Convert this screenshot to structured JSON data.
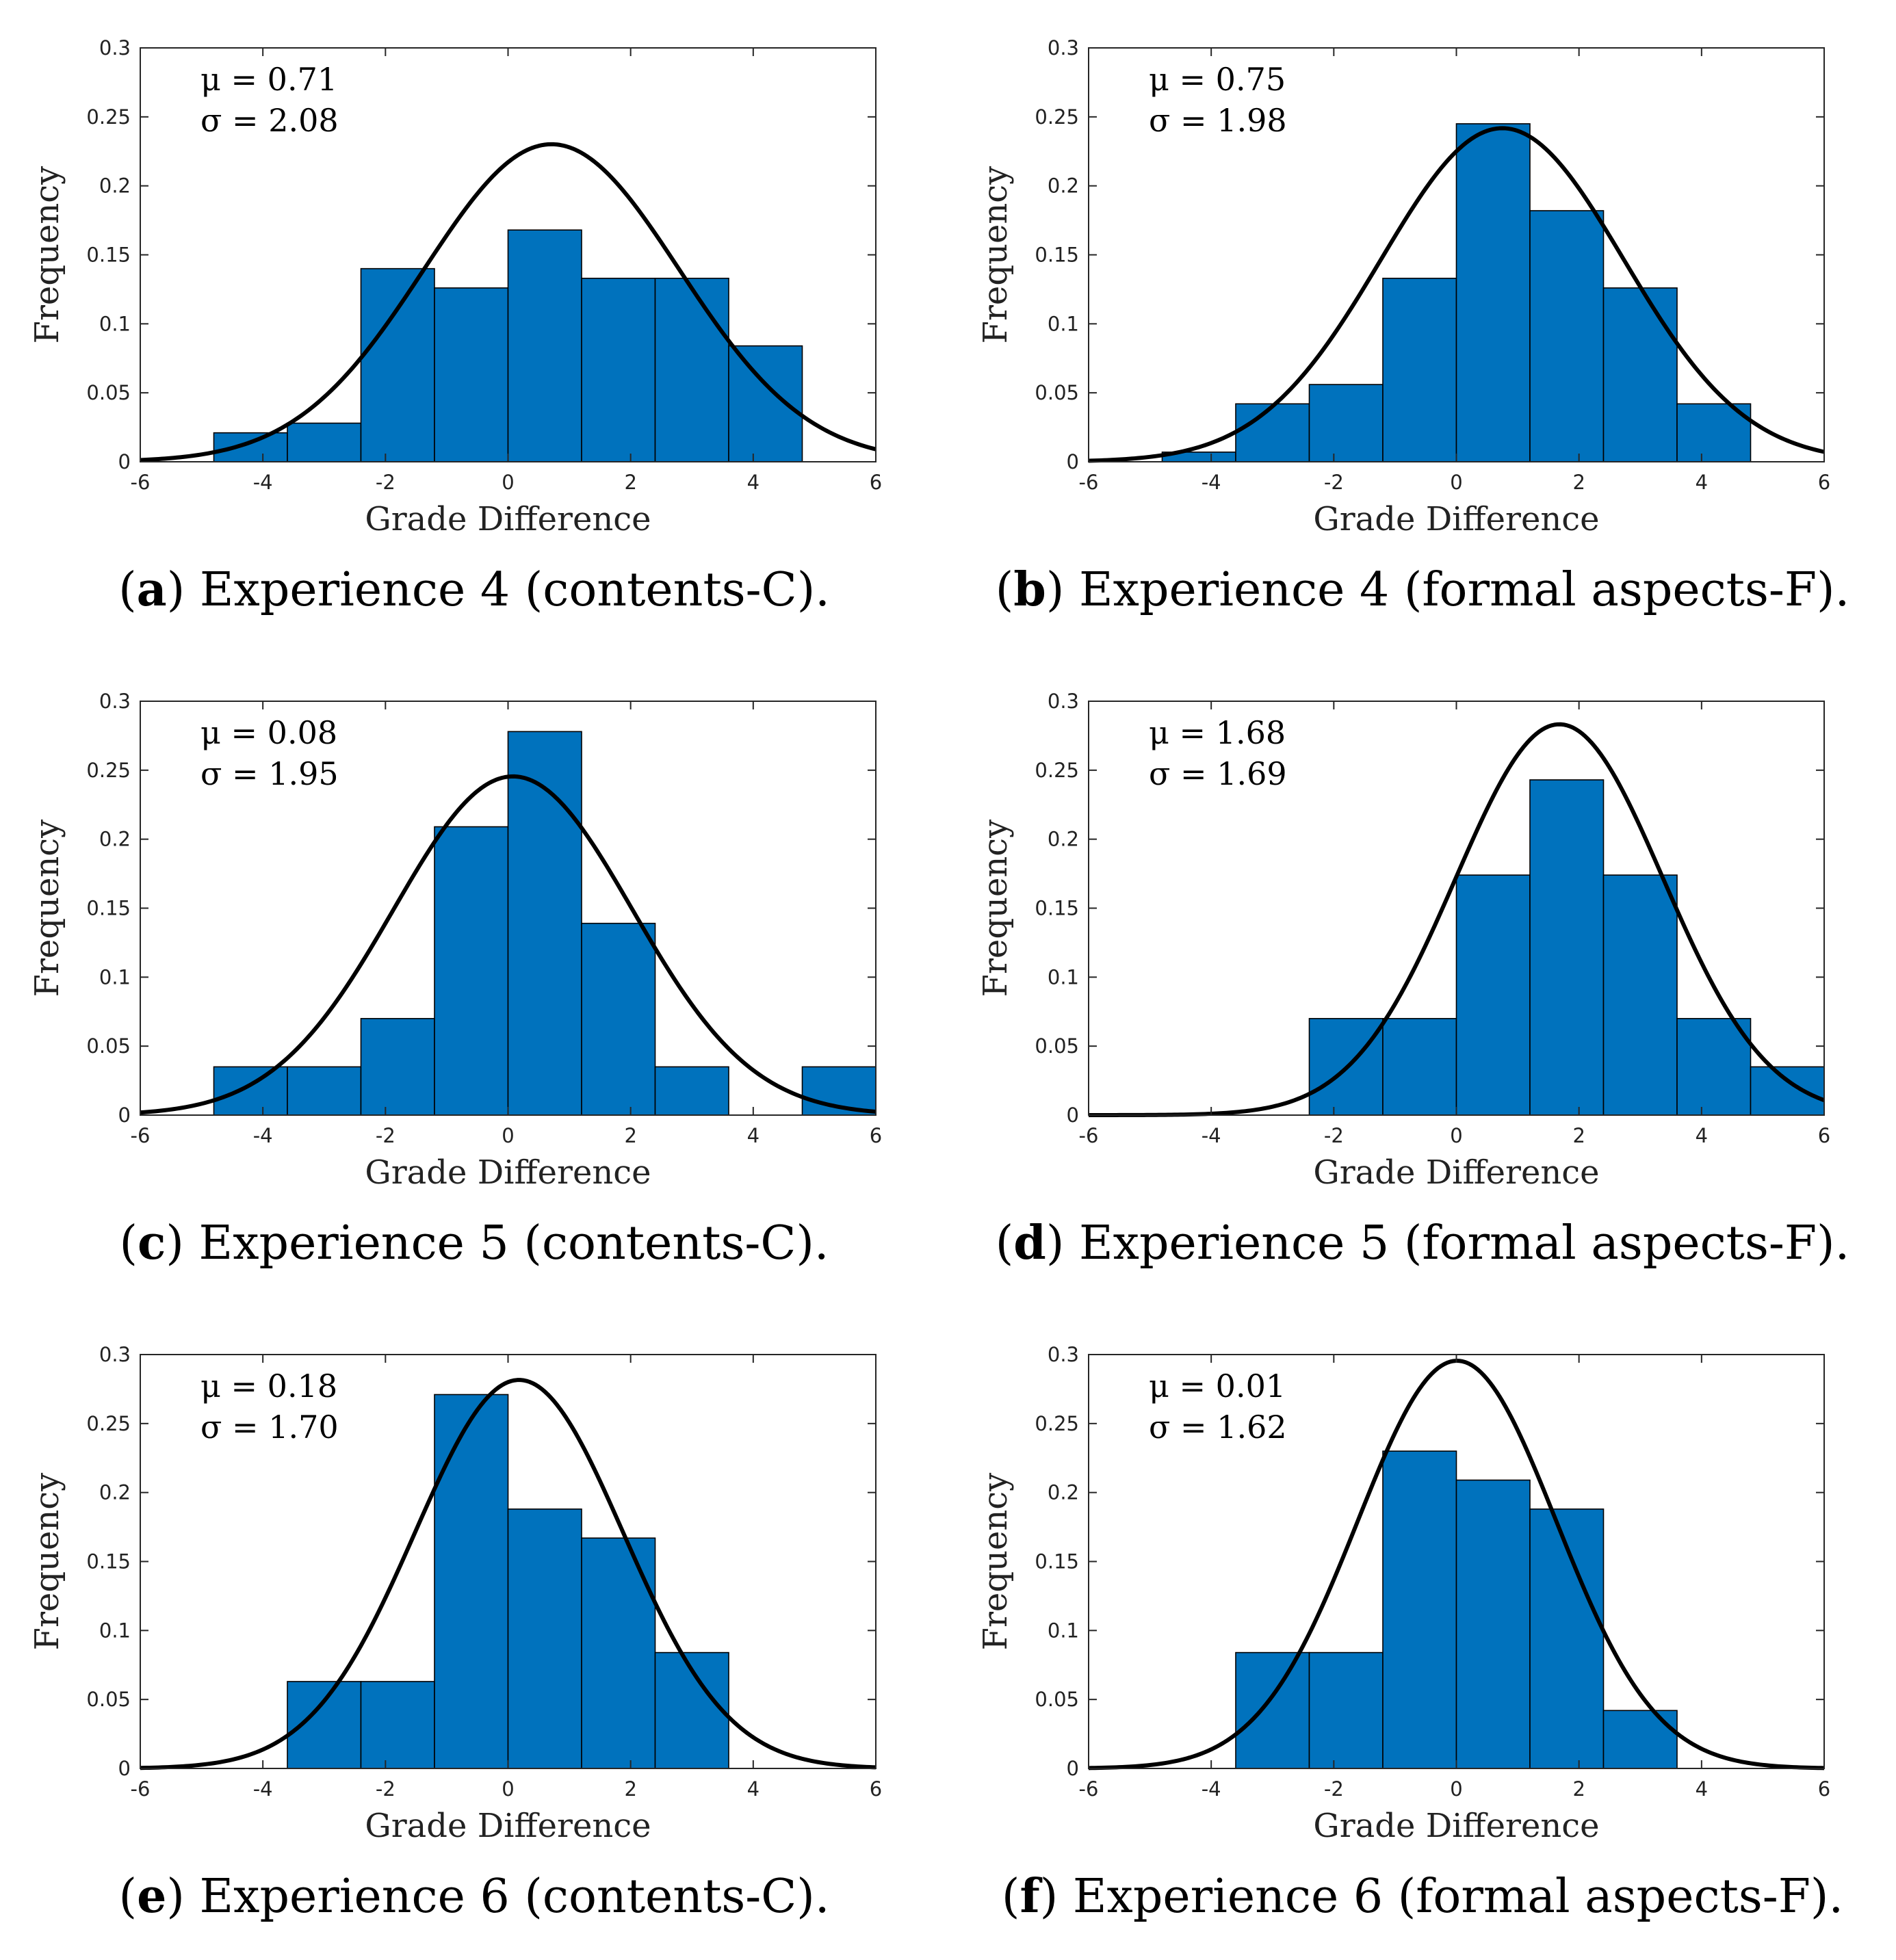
{
  "chart_data": [
    {
      "type": "bar",
      "panel_letter": "a",
      "caption": "Experience 4 (contents-C).",
      "xlabel": "Grade Difference",
      "ylabel": "Frequency",
      "xlim": [
        -6,
        6
      ],
      "ylim": [
        0,
        0.3
      ],
      "xticks": [
        "-6",
        "-4",
        "-2",
        "0",
        "2",
        "4",
        "6"
      ],
      "yticks": [
        "0",
        "0.05",
        "0.1",
        "0.15",
        "0.2",
        "0.25",
        "0.3"
      ],
      "bin_edges": [
        -4.8,
        -3.6,
        -2.4,
        -1.2,
        0,
        1.2,
        2.4,
        3.6,
        4.8
      ],
      "values": [
        0.021,
        0.028,
        0.14,
        0.126,
        0.168,
        0.133,
        0.133,
        0.084
      ],
      "fit": {
        "type": "normal",
        "mu": 0.71,
        "sigma": 2.08
      },
      "annotation": [
        "μ = 0.71",
        "σ = 2.08"
      ],
      "bar_color": "#0072bd",
      "curve_color": "#000000"
    },
    {
      "type": "bar",
      "panel_letter": "b",
      "caption": "Experience 4 (formal aspects-F).",
      "xlabel": "Grade Difference",
      "ylabel": "Frequency",
      "xlim": [
        -6,
        6
      ],
      "ylim": [
        0,
        0.3
      ],
      "xticks": [
        "-6",
        "-4",
        "-2",
        "0",
        "2",
        "4",
        "6"
      ],
      "yticks": [
        "0",
        "0.05",
        "0.1",
        "0.15",
        "0.2",
        "0.25",
        "0.3"
      ],
      "bin_edges": [
        -4.8,
        -3.6,
        -2.4,
        -1.2,
        0,
        1.2,
        2.4,
        3.6,
        4.8
      ],
      "values": [
        0.007,
        0.042,
        0.056,
        0.133,
        0.245,
        0.182,
        0.126,
        0.042
      ],
      "fit": {
        "type": "normal",
        "mu": 0.75,
        "sigma": 1.98
      },
      "annotation": [
        "μ = 0.75",
        "σ = 1.98"
      ],
      "bar_color": "#0072bd",
      "curve_color": "#000000"
    },
    {
      "type": "bar",
      "panel_letter": "c",
      "caption": "Experience 5 (contents-C).",
      "xlabel": "Grade Difference",
      "ylabel": "Frequency",
      "xlim": [
        -6,
        6
      ],
      "ylim": [
        0,
        0.3
      ],
      "xticks": [
        "-6",
        "-4",
        "-2",
        "0",
        "2",
        "4",
        "6"
      ],
      "yticks": [
        "0",
        "0.05",
        "0.1",
        "0.15",
        "0.2",
        "0.25",
        "0.3"
      ],
      "bin_edges": [
        -4.8,
        -3.6,
        -2.4,
        -1.2,
        0,
        1.2,
        2.4,
        3.6,
        4.8,
        6
      ],
      "values": [
        0.035,
        0.035,
        0.07,
        0.209,
        0.278,
        0.139,
        0.035,
        0,
        0.035
      ],
      "fit": {
        "type": "normal",
        "mu": 0.08,
        "sigma": 1.95
      },
      "annotation": [
        "μ = 0.08",
        "σ = 1.95"
      ],
      "bar_color": "#0072bd",
      "curve_color": "#000000"
    },
    {
      "type": "bar",
      "panel_letter": "d",
      "caption": "Experience 5 (formal aspects-F).",
      "xlabel": "Grade Difference",
      "ylabel": "Frequency",
      "xlim": [
        -6,
        6
      ],
      "ylim": [
        0,
        0.3
      ],
      "xticks": [
        "-6",
        "-4",
        "-2",
        "0",
        "2",
        "4",
        "6"
      ],
      "yticks": [
        "0",
        "0.05",
        "0.1",
        "0.15",
        "0.2",
        "0.25",
        "0.3"
      ],
      "bin_edges": [
        -2.4,
        -1.2,
        0,
        1.2,
        2.4,
        3.6,
        4.8,
        6
      ],
      "values": [
        0.07,
        0.07,
        0.174,
        0.243,
        0.174,
        0.07,
        0.035
      ],
      "fit": {
        "type": "normal",
        "mu": 1.68,
        "sigma": 1.69
      },
      "annotation": [
        "μ = 1.68",
        "σ = 1.69"
      ],
      "bar_color": "#0072bd",
      "curve_color": "#000000"
    },
    {
      "type": "bar",
      "panel_letter": "e",
      "caption": "Experience 6 (contents-C).",
      "xlabel": "Grade Difference",
      "ylabel": "Frequency",
      "xlim": [
        -6,
        6
      ],
      "ylim": [
        0,
        0.3
      ],
      "xticks": [
        "-6",
        "-4",
        "-2",
        "0",
        "2",
        "4",
        "6"
      ],
      "yticks": [
        "0",
        "0.05",
        "0.1",
        "0.15",
        "0.2",
        "0.25",
        "0.3"
      ],
      "bin_edges": [
        -3.6,
        -2.4,
        -1.2,
        0,
        1.2,
        2.4,
        3.6
      ],
      "values": [
        0.063,
        0.063,
        0.271,
        0.188,
        0.167,
        0.084
      ],
      "fit": {
        "type": "normal",
        "mu": 0.18,
        "sigma": 1.7
      },
      "annotation": [
        "μ = 0.18",
        "σ = 1.70"
      ],
      "bar_color": "#0072bd",
      "curve_color": "#000000"
    },
    {
      "type": "bar",
      "panel_letter": "f",
      "caption": "Experience 6 (formal aspects-F).",
      "xlabel": "Grade Difference",
      "ylabel": "Frequency",
      "xlim": [
        -6,
        6
      ],
      "ylim": [
        0,
        0.3
      ],
      "xticks": [
        "-6",
        "-4",
        "-2",
        "0",
        "2",
        "4",
        "6"
      ],
      "yticks": [
        "0",
        "0.05",
        "0.1",
        "0.15",
        "0.2",
        "0.25",
        "0.3"
      ],
      "bin_edges": [
        -3.6,
        -2.4,
        -1.2,
        0,
        1.2,
        2.4,
        3.6
      ],
      "values": [
        0.084,
        0.084,
        0.23,
        0.209,
        0.188,
        0.042
      ],
      "fit": {
        "type": "normal",
        "mu": 0.01,
        "sigma": 1.62
      },
      "annotation": [
        "μ = 0.01",
        "σ = 1.62"
      ],
      "bar_color": "#0072bd",
      "curve_color": "#000000"
    }
  ]
}
